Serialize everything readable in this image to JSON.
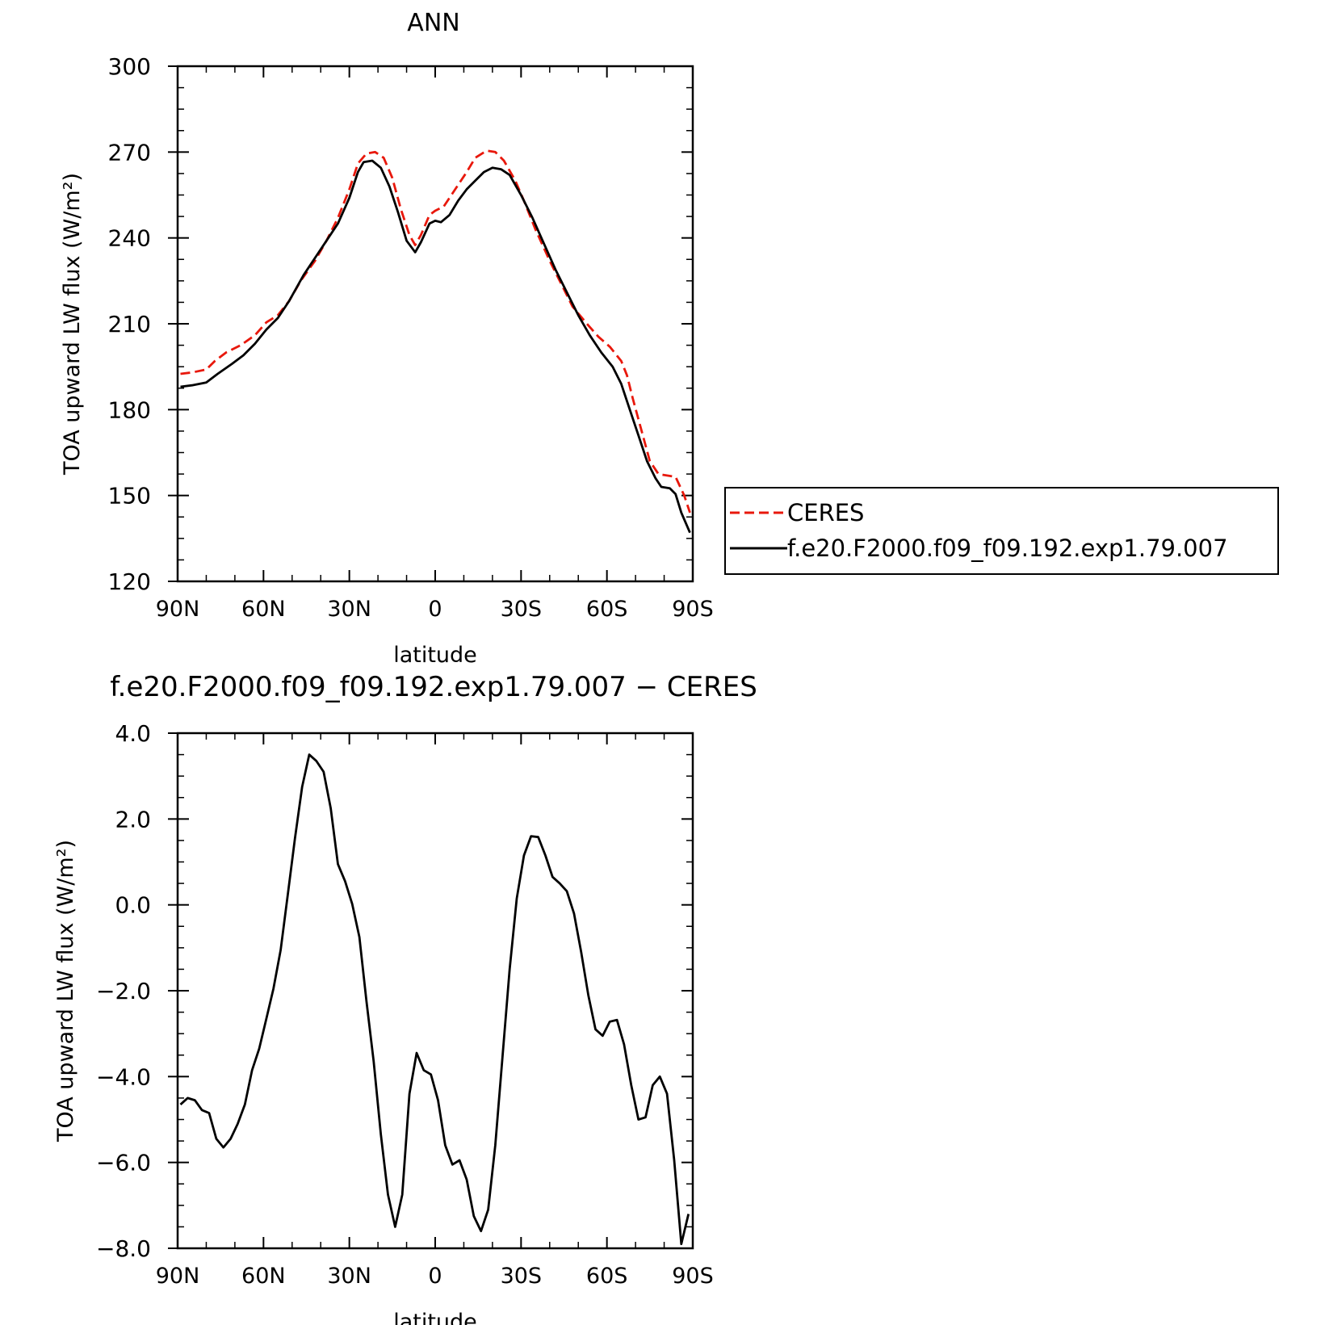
{
  "chart_data": [
    {
      "type": "line",
      "title": "ANN",
      "xlabel": "latitude",
      "ylabel": "TOA upward LW flux (W/m²)",
      "xlim": [
        90,
        -90
      ],
      "ylim": [
        120,
        300
      ],
      "x_ticks": [
        90,
        60,
        30,
        0,
        -30,
        -60,
        -90
      ],
      "x_tick_labels": [
        "90N",
        "60N",
        "30N",
        "0",
        "30S",
        "60S",
        "90S"
      ],
      "y_ticks": [
        120,
        150,
        180,
        210,
        240,
        270,
        300
      ],
      "y_tick_labels": [
        "120",
        "150",
        "180",
        "210",
        "240",
        "270",
        "300"
      ],
      "grid": false,
      "legend_position": "right",
      "series": [
        {
          "name": "CERES",
          "color": "#e8180c",
          "dash": "dashed",
          "points": [
            [
              89,
              192.5
            ],
            [
              85,
              193
            ],
            [
              80,
              194
            ],
            [
              77,
              197
            ],
            [
              73,
              200
            ],
            [
              68,
              202.5
            ],
            [
              63,
              206
            ],
            [
              59,
              210.5
            ],
            [
              55,
              213
            ],
            [
              51,
              218
            ],
            [
              47,
              225
            ],
            [
              42,
              232
            ],
            [
              38,
              239
            ],
            [
              34,
              247
            ],
            [
              30,
              257
            ],
            [
              27,
              266
            ],
            [
              24,
              269.5
            ],
            [
              21,
              270
            ],
            [
              18,
              268
            ],
            [
              15,
              261
            ],
            [
              12,
              250
            ],
            [
              9,
              241
            ],
            [
              7,
              237.5
            ],
            [
              5,
              241
            ],
            [
              2,
              248
            ],
            [
              0,
              249.5
            ],
            [
              -3,
              251
            ],
            [
              -7,
              257
            ],
            [
              -11,
              263
            ],
            [
              -14,
              268
            ],
            [
              -18,
              270.5
            ],
            [
              -21,
              270
            ],
            [
              -24,
              267
            ],
            [
              -28,
              260
            ],
            [
              -31,
              253
            ],
            [
              -35,
              243
            ],
            [
              -40,
              232
            ],
            [
              -44,
              224
            ],
            [
              -48,
              216
            ],
            [
              -53,
              210
            ],
            [
              -57,
              205.5
            ],
            [
              -61,
              202
            ],
            [
              -65,
              197
            ],
            [
              -67,
              192
            ],
            [
              -69,
              184
            ],
            [
              -72,
              173
            ],
            [
              -75,
              162
            ],
            [
              -78,
              157.5
            ],
            [
              -81,
              157
            ],
            [
              -84,
              156.5
            ],
            [
              -87,
              150
            ],
            [
              -89,
              144
            ]
          ]
        },
        {
          "name": "f.e20.F2000.f09_f09.192.exp1.79.007",
          "color": "#000000",
          "dash": "solid",
          "points": [
            [
              89,
              188
            ],
            [
              85,
              188.5
            ],
            [
              80,
              189.5
            ],
            [
              76,
              192.5
            ],
            [
              71,
              196
            ],
            [
              67,
              199
            ],
            [
              63,
              203
            ],
            [
              59,
              208
            ],
            [
              55,
              212
            ],
            [
              51,
              218
            ],
            [
              46,
              227
            ],
            [
              42,
              233
            ],
            [
              38,
              239
            ],
            [
              34,
              245
            ],
            [
              30,
              254
            ],
            [
              27,
              263
            ],
            [
              25,
              266.5
            ],
            [
              22,
              267
            ],
            [
              19,
              264.5
            ],
            [
              16,
              258
            ],
            [
              13,
              249
            ],
            [
              10,
              239
            ],
            [
              7,
              235
            ],
            [
              5,
              238.5
            ],
            [
              2,
              245
            ],
            [
              0,
              246
            ],
            [
              -2,
              245.5
            ],
            [
              -5,
              248
            ],
            [
              -8,
              253
            ],
            [
              -11,
              257
            ],
            [
              -14,
              260
            ],
            [
              -17,
              263
            ],
            [
              -20,
              264.5
            ],
            [
              -23,
              264
            ],
            [
              -26,
              262
            ],
            [
              -30,
              255
            ],
            [
              -34,
              247
            ],
            [
              -38,
              238
            ],
            [
              -42,
              229
            ],
            [
              -46,
              221
            ],
            [
              -50,
              213
            ],
            [
              -54,
              206
            ],
            [
              -58,
              200
            ],
            [
              -62,
              195
            ],
            [
              -65,
              189
            ],
            [
              -68,
              180
            ],
            [
              -71,
              171
            ],
            [
              -74,
              162
            ],
            [
              -77,
              156
            ],
            [
              -79,
              153
            ],
            [
              -82,
              152.5
            ],
            [
              -84,
              150.5
            ],
            [
              -86,
              144
            ],
            [
              -89,
              137
            ]
          ]
        }
      ]
    },
    {
      "type": "line",
      "title": "f.e20.F2000.f09_f09.192.exp1.79.007 − CERES",
      "xlabel": "latitude",
      "ylabel": "TOA upward LW flux (W/m²)",
      "xlim": [
        90,
        -90
      ],
      "ylim": [
        -8.0,
        4.0
      ],
      "x_ticks": [
        90,
        60,
        30,
        0,
        -30,
        -60,
        -90
      ],
      "x_tick_labels": [
        "90N",
        "60N",
        "30N",
        "0",
        "30S",
        "60S",
        "90S"
      ],
      "y_ticks": [
        -8,
        -6,
        -4,
        -2,
        0,
        2,
        4
      ],
      "y_tick_labels": [
        "−8.0",
        "−6.0",
        "−4.0",
        "−2.0",
        "0.0",
        "2.0",
        "4.0"
      ],
      "grid": false,
      "series": [
        {
          "color": "#000000",
          "dash": "solid",
          "points": [
            [
              89,
              -4.65
            ],
            [
              86.5,
              -4.5
            ],
            [
              84,
              -4.55
            ],
            [
              81.5,
              -4.78
            ],
            [
              79,
              -4.85
            ],
            [
              76.5,
              -5.45
            ],
            [
              74,
              -5.65
            ],
            [
              71.5,
              -5.45
            ],
            [
              69,
              -5.1
            ],
            [
              66.5,
              -4.65
            ],
            [
              64,
              -3.85
            ],
            [
              61.5,
              -3.35
            ],
            [
              59,
              -2.65
            ],
            [
              56.5,
              -1.95
            ],
            [
              54,
              -1.05
            ],
            [
              51.5,
              0.25
            ],
            [
              49,
              1.55
            ],
            [
              46.5,
              2.75
            ],
            [
              44,
              3.5
            ],
            [
              41.5,
              3.35
            ],
            [
              39,
              3.1
            ],
            [
              36.5,
              2.25
            ],
            [
              34,
              0.95
            ],
            [
              31.5,
              0.55
            ],
            [
              29,
              0.02
            ],
            [
              26.5,
              -0.75
            ],
            [
              24,
              -2.25
            ],
            [
              21.5,
              -3.65
            ],
            [
              19,
              -5.35
            ],
            [
              16.5,
              -6.75
            ],
            [
              14,
              -7.5
            ],
            [
              11.5,
              -6.75
            ],
            [
              9,
              -4.4
            ],
            [
              6.5,
              -3.45
            ],
            [
              4,
              -3.85
            ],
            [
              1.5,
              -3.95
            ],
            [
              -1,
              -4.55
            ],
            [
              -3.5,
              -5.6
            ],
            [
              -6,
              -6.05
            ],
            [
              -8.5,
              -5.95
            ],
            [
              -11,
              -6.4
            ],
            [
              -13.5,
              -7.25
            ],
            [
              -16,
              -7.6
            ],
            [
              -18.5,
              -7.1
            ],
            [
              -21,
              -5.6
            ],
            [
              -23.5,
              -3.55
            ],
            [
              -26,
              -1.5
            ],
            [
              -28.5,
              0.15
            ],
            [
              -31,
              1.15
            ],
            [
              -33.5,
              1.6
            ],
            [
              -36,
              1.58
            ],
            [
              -38.5,
              1.15
            ],
            [
              -41,
              0.65
            ],
            [
              -43.5,
              0.5
            ],
            [
              -46,
              0.32
            ],
            [
              -48.5,
              -0.2
            ],
            [
              -51,
              -1.1
            ],
            [
              -53.5,
              -2.1
            ],
            [
              -56,
              -2.9
            ],
            [
              -58.5,
              -3.05
            ],
            [
              -61,
              -2.72
            ],
            [
              -63.5,
              -2.68
            ],
            [
              -66,
              -3.25
            ],
            [
              -68.5,
              -4.2
            ],
            [
              -71,
              -5.0
            ],
            [
              -73.5,
              -4.95
            ],
            [
              -76,
              -4.2
            ],
            [
              -78.5,
              -4.0
            ],
            [
              -81,
              -4.4
            ],
            [
              -83.5,
              -5.95
            ],
            [
              -86,
              -7.9
            ],
            [
              -88.5,
              -7.2
            ]
          ]
        }
      ]
    }
  ]
}
